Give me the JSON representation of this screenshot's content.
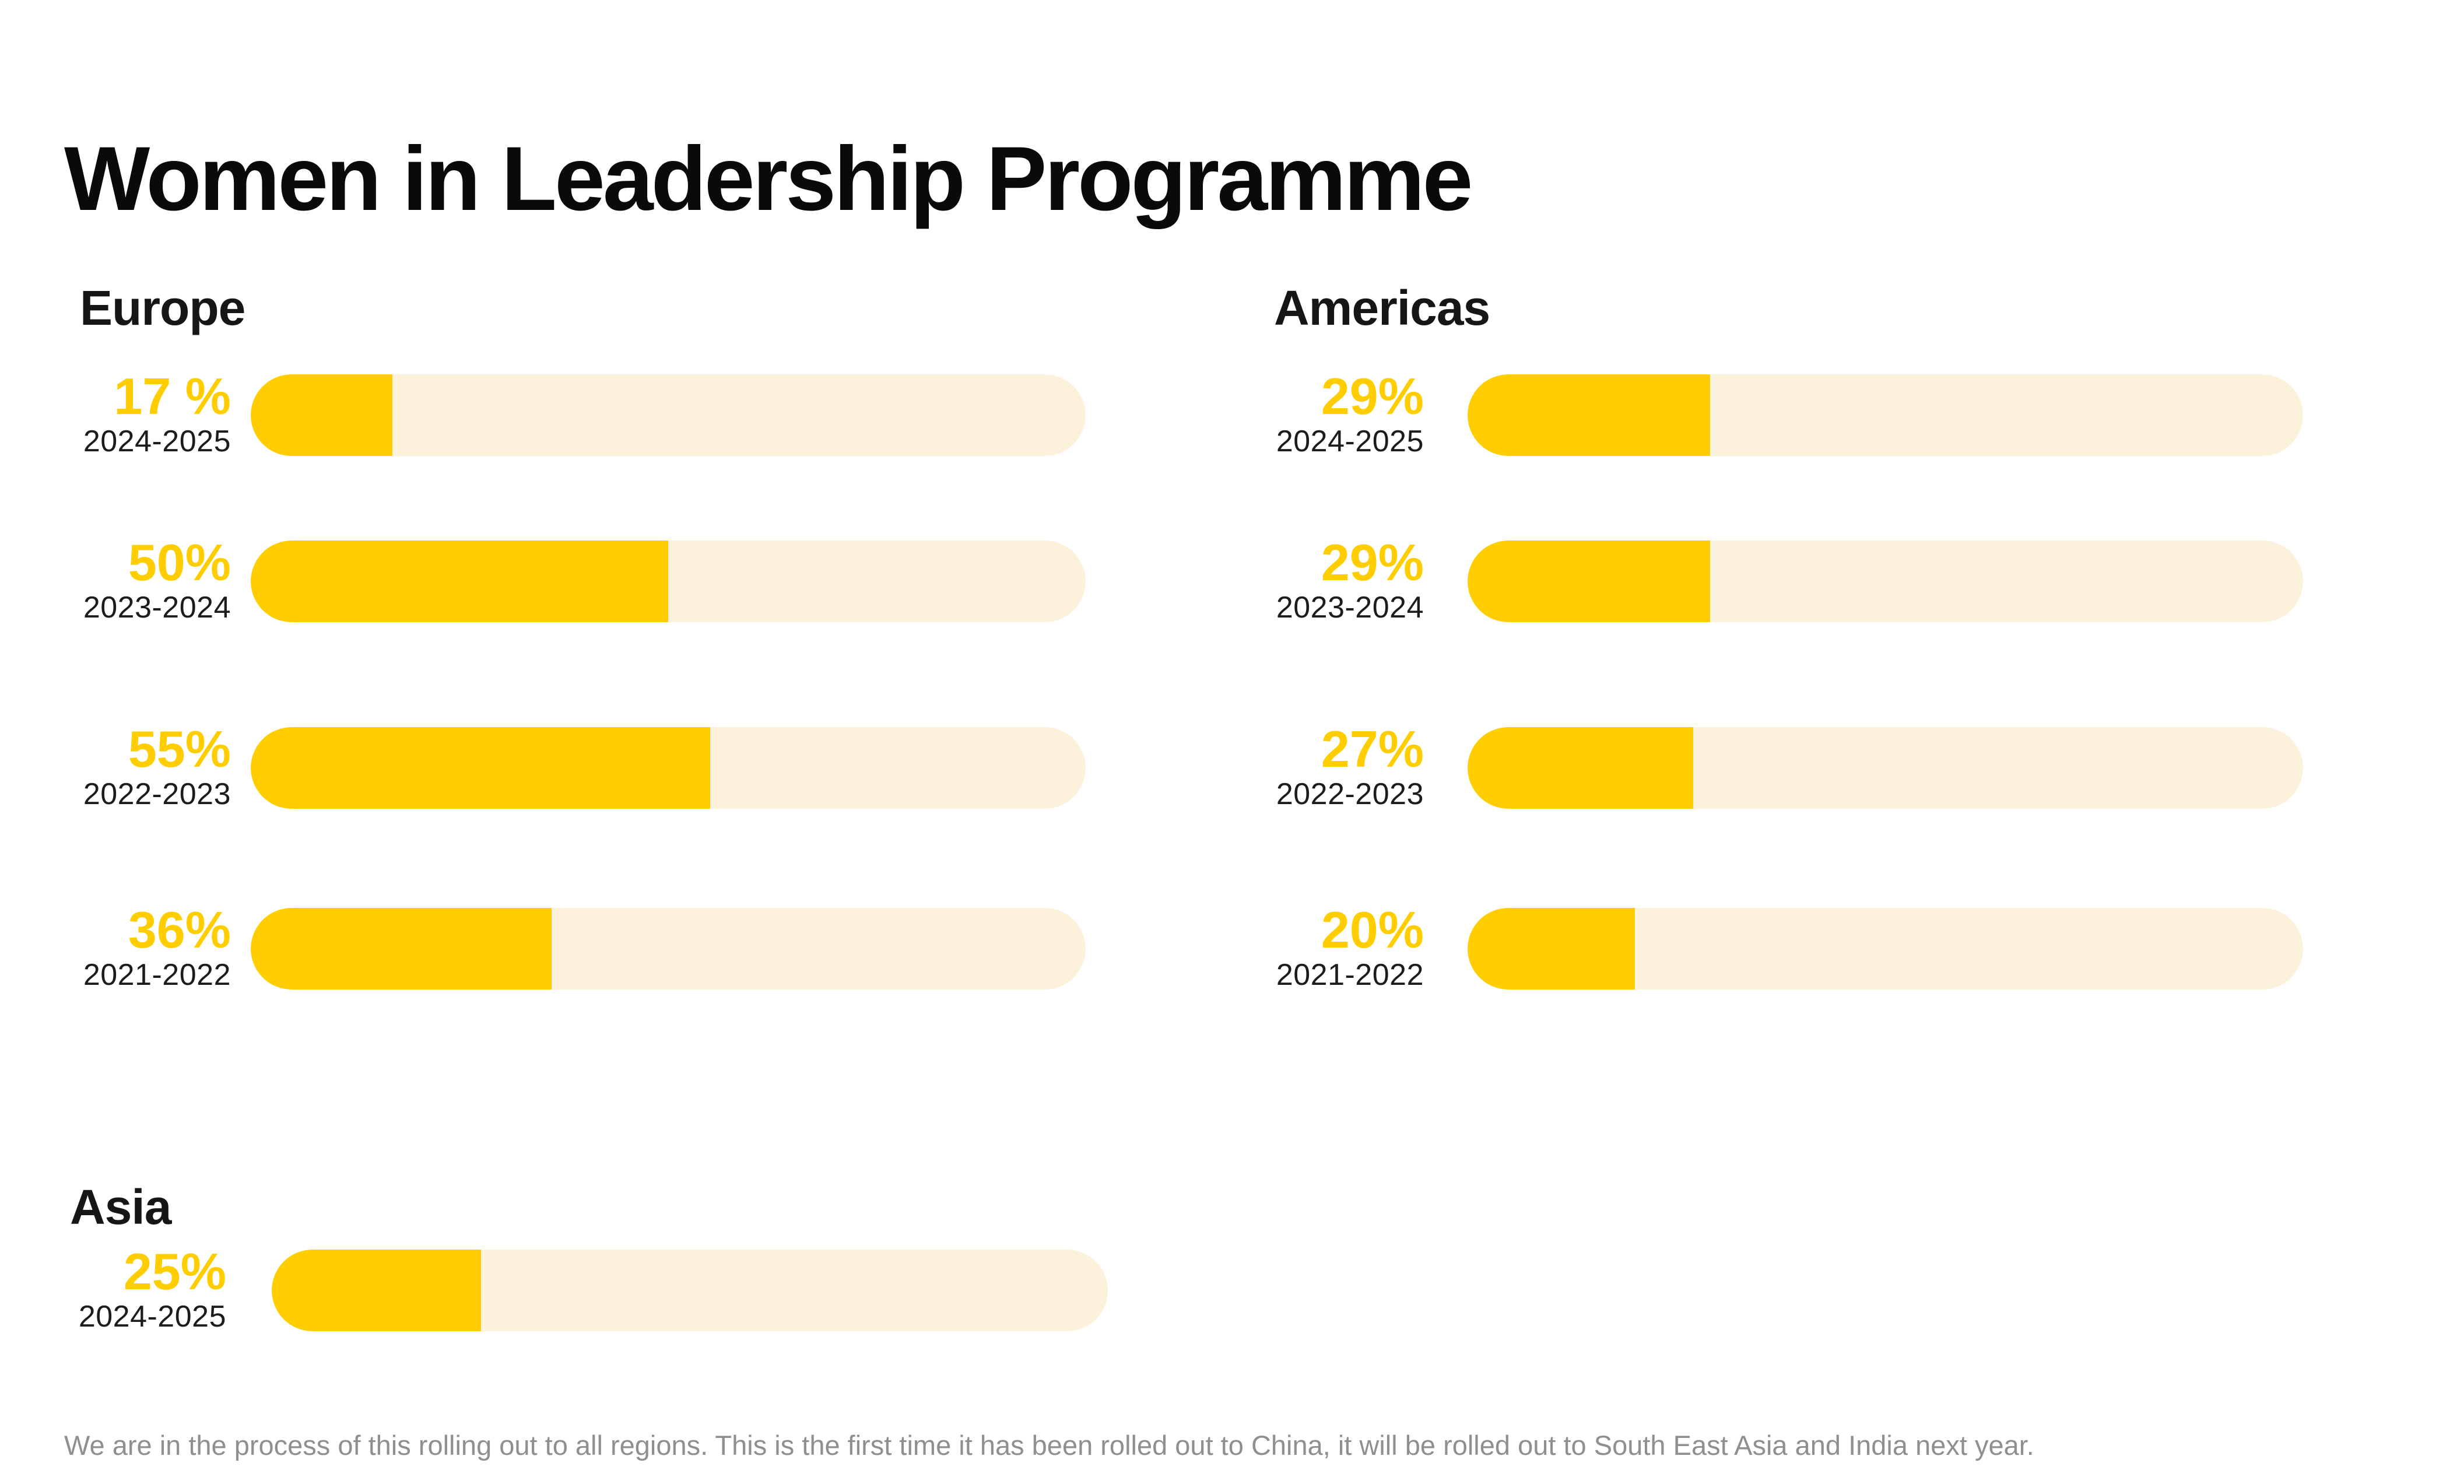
{
  "title": "Women in Leadership Programme",
  "colors": {
    "background": "#FFFFFF",
    "accent": "#FFCD00",
    "track": "#FCF1DB",
    "title": "#0A0A0A",
    "header": "#161616",
    "period": "#1C1C1C",
    "footnote": "#8F8F8F"
  },
  "chart_data": {
    "type": "bar",
    "orientation": "horizontal",
    "unit": "percent",
    "xlim": [
      0,
      100
    ],
    "grid": false,
    "legend": "none",
    "title": "Women in Leadership Programme",
    "groups": [
      {
        "name": "Europe",
        "rows": [
          {
            "label": "17 %",
            "value": 17,
            "period": "2024-2025"
          },
          {
            "label": "50%",
            "value": 50,
            "period": "2023-2024"
          },
          {
            "label": "55%",
            "value": 55,
            "period": "2022-2023"
          },
          {
            "label": "36%",
            "value": 36,
            "period": "2021-2022"
          }
        ]
      },
      {
        "name": "Americas",
        "rows": [
          {
            "label": "29%",
            "value": 29,
            "period": "2024-2025"
          },
          {
            "label": "29%",
            "value": 29,
            "period": "2023-2024"
          },
          {
            "label": "27%",
            "value": 27,
            "period": "2022-2023"
          },
          {
            "label": "20%",
            "value": 20,
            "period": "2021-2022"
          }
        ]
      },
      {
        "name": "Asia",
        "rows": [
          {
            "label": "25%",
            "value": 25,
            "period": "2024-2025"
          }
        ]
      }
    ]
  },
  "footnote": "We are in the process of this rolling out to all regions. This is the first time it has been rolled out to China, it will be rolled out to South East Asia and India next year."
}
